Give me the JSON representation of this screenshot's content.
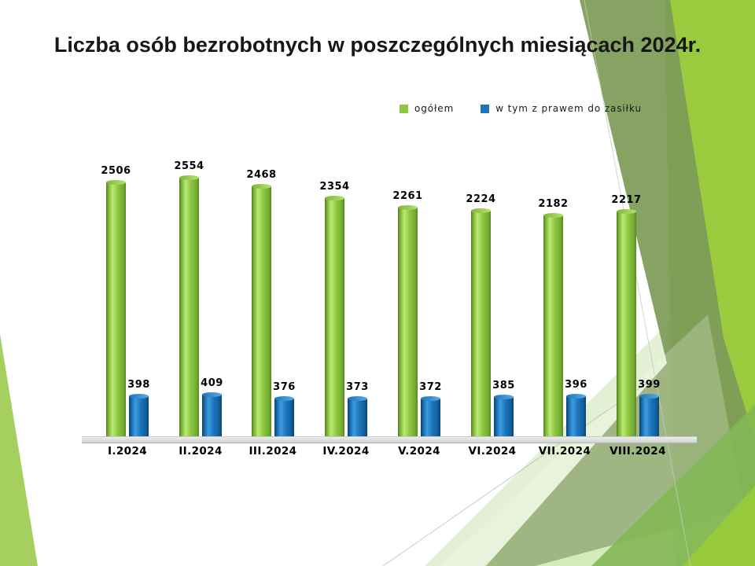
{
  "slide": {
    "title": "Liczba osób bezrobotnych w poszczególnych miesiącach 2024r."
  },
  "chart_data": {
    "type": "bar",
    "title": "Liczba osób bezrobotnych w poszczególnych miesiącach 2024r.",
    "categories": [
      "I.2024",
      "II.2024",
      "III.2024",
      "IV.2024",
      "V.2024",
      "VI.2024",
      "VII.2024",
      "VIII.2024"
    ],
    "series": [
      {
        "name": "ogółem",
        "color": "#8dc63f",
        "values": [
          2506,
          2554,
          2468,
          2354,
          2261,
          2224,
          2182,
          2217
        ]
      },
      {
        "name": "w tym z prawem do zasiłku",
        "color": "#1f75bb",
        "values": [
          398,
          409,
          376,
          373,
          372,
          385,
          396,
          399
        ]
      }
    ],
    "xlabel": "",
    "ylabel": "",
    "ylim": [
      0,
      2600
    ],
    "grid": false,
    "legend_position": "top",
    "data_labels": true
  },
  "colors": {
    "bar_green": "#8dc63f",
    "bar_blue": "#1f75bb",
    "deco_sage": "#7d9c58",
    "deco_bright": "#9aca3e",
    "deco_pale": "#e3f0d3",
    "floor_gray": "#d9d9d9"
  }
}
